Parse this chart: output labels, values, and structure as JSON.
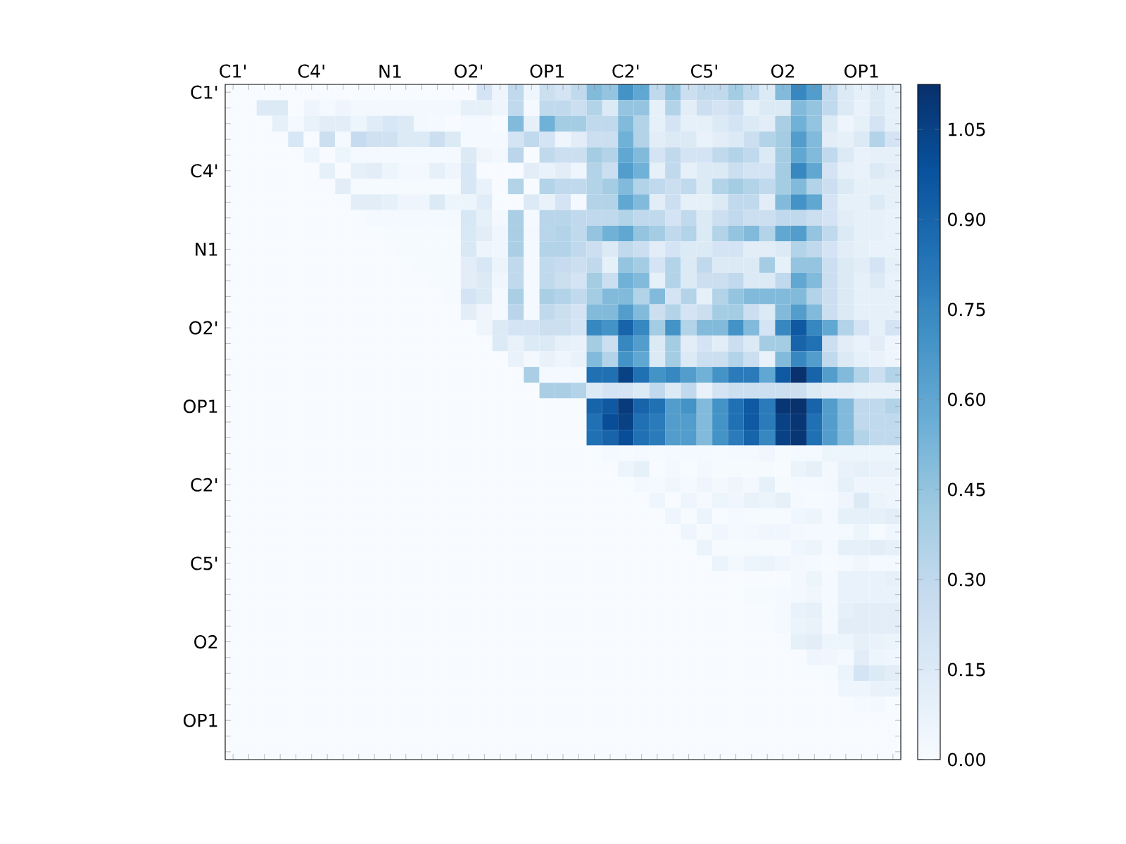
{
  "chart_data": {
    "type": "heatmap",
    "categories": [
      "C1'",
      null,
      null,
      null,
      null,
      "C4'",
      null,
      null,
      null,
      null,
      "N1",
      null,
      null,
      null,
      null,
      "O2'",
      null,
      null,
      null,
      null,
      "OP1",
      null,
      null,
      null,
      null,
      "C2'",
      null,
      null,
      null,
      null,
      "C5'",
      null,
      null,
      null,
      null,
      "O2",
      null,
      null,
      null,
      null,
      "OP1",
      null,
      null
    ],
    "y_categories": [
      "C1'",
      null,
      null,
      null,
      null,
      "C4'",
      null,
      null,
      null,
      null,
      "N1",
      null,
      null,
      null,
      null,
      "O2'",
      null,
      null,
      null,
      null,
      "OP1",
      null,
      null,
      null,
      null,
      "C2'",
      null,
      null,
      null,
      null,
      "C5'",
      null,
      null,
      null,
      null,
      "O2",
      null,
      null,
      null,
      null,
      "OP1",
      null,
      null
    ],
    "clim": [
      0,
      1.125
    ],
    "cticks": [
      {
        "value": 0,
        "label": "0.00"
      },
      {
        "value": 0.15,
        "label": "0.15"
      },
      {
        "value": 0.3,
        "label": "0.30"
      },
      {
        "value": 0.45,
        "label": "0.45"
      },
      {
        "value": 0.6,
        "label": "0.60"
      },
      {
        "value": 0.75,
        "label": "0.75"
      },
      {
        "value": 0.9,
        "label": "0.90"
      },
      {
        "value": 1.05,
        "label": "1.05"
      }
    ],
    "cells": [
      [
        0,
        0,
        0,
        0,
        0,
        0,
        0,
        0,
        0,
        0,
        0,
        0,
        0,
        0,
        0,
        0,
        0.2,
        0.05,
        0.3,
        0.05,
        0.25,
        0.2,
        0.3,
        0.5,
        0.45,
        0.7,
        0.6,
        0.3,
        0.45,
        0.25,
        0.3,
        0.3,
        0.4,
        0.3,
        0.15,
        0.5,
        0.75,
        0.65,
        0.3,
        0.15,
        0.1,
        0.15,
        0.1
      ],
      [
        0,
        0,
        0.15,
        0.15,
        0,
        0.05,
        0.02,
        0.05,
        0.03,
        0.03,
        0.03,
        0.03,
        0.03,
        0.03,
        0.03,
        0.1,
        0.1,
        0.05,
        0.3,
        0.02,
        0.3,
        0.3,
        0.25,
        0.35,
        0.15,
        0.45,
        0.45,
        0.1,
        0.35,
        0.12,
        0.25,
        0.2,
        0.25,
        0.1,
        0.15,
        0.15,
        0.5,
        0.45,
        0.3,
        0.15,
        0.08,
        0.15,
        0.1
      ],
      [
        0,
        0,
        0,
        0.1,
        0.02,
        0.08,
        0.12,
        0.12,
        0.06,
        0.13,
        0.18,
        0.15,
        0.03,
        0.02,
        0,
        0.02,
        0.02,
        0,
        0.5,
        0.1,
        0.55,
        0.4,
        0.4,
        0.3,
        0.3,
        0.5,
        0.35,
        0.1,
        0.2,
        0.1,
        0.1,
        0.15,
        0.2,
        0.15,
        0.12,
        0.38,
        0.55,
        0.45,
        0.15,
        0.05,
        0.1,
        0.2,
        0.1
      ],
      [
        0,
        0,
        0,
        0,
        0.18,
        0,
        0.25,
        0.02,
        0.28,
        0.22,
        0.22,
        0.15,
        0.15,
        0.25,
        0.15,
        0.02,
        0.02,
        0.02,
        0.2,
        0.3,
        0.2,
        0.05,
        0.12,
        0.25,
        0.25,
        0.55,
        0.35,
        0.12,
        0.15,
        0.15,
        0.08,
        0.12,
        0.15,
        0.25,
        0.35,
        0.4,
        0.65,
        0.5,
        0.12,
        0.1,
        0.15,
        0.35,
        0.2
      ],
      [
        0,
        0,
        0,
        0,
        0,
        0.06,
        0,
        0.06,
        0.02,
        0.02,
        0.02,
        0.02,
        0.02,
        0.02,
        0.02,
        0.15,
        0.05,
        0.03,
        0.32,
        0,
        0.3,
        0.25,
        0.25,
        0.4,
        0.35,
        0.6,
        0.5,
        0.2,
        0.3,
        0.2,
        0.2,
        0.3,
        0.35,
        0.3,
        0.15,
        0.4,
        0.6,
        0.5,
        0.3,
        0.15,
        0.08,
        0.1,
        0.1
      ],
      [
        0,
        0,
        0,
        0,
        0,
        0,
        0.1,
        0,
        0.1,
        0.12,
        0.06,
        0.03,
        0.03,
        0.1,
        0.05,
        0.18,
        0,
        0,
        0,
        0.12,
        0.08,
        0.12,
        0.05,
        0.35,
        0.25,
        0.65,
        0.55,
        0.1,
        0.3,
        0.1,
        0.15,
        0.15,
        0.25,
        0.2,
        0.2,
        0.4,
        0.75,
        0.6,
        0.2,
        0.1,
        0.08,
        0.15,
        0.12
      ],
      [
        0,
        0,
        0,
        0,
        0,
        0,
        0,
        0.12,
        0.01,
        0.01,
        0.01,
        0.01,
        0.01,
        0.01,
        0.01,
        0.18,
        0.08,
        0,
        0.35,
        0,
        0.35,
        0.3,
        0.3,
        0.35,
        0.4,
        0.5,
        0.35,
        0.3,
        0.25,
        0.3,
        0.15,
        0.35,
        0.4,
        0.35,
        0.3,
        0.4,
        0.5,
        0.35,
        0.25,
        0.15,
        0.1,
        0.1,
        0.1
      ],
      [
        0,
        0,
        0,
        0,
        0,
        0,
        0,
        0,
        0.12,
        0.12,
        0.1,
        0.05,
        0.05,
        0.15,
        0.06,
        0.06,
        0.13,
        0,
        0,
        0.15,
        0.08,
        0.2,
        0.02,
        0.35,
        0.35,
        0.6,
        0.5,
        0.12,
        0.25,
        0.1,
        0.1,
        0.15,
        0.3,
        0.3,
        0.12,
        0.5,
        0.7,
        0.6,
        0.2,
        0.1,
        0.1,
        0.15,
        0.1
      ],
      [
        0,
        0,
        0,
        0,
        0,
        0,
        0,
        0,
        0,
        0.02,
        0.02,
        0.02,
        0.02,
        0.02,
        0.02,
        0.18,
        0.1,
        0.03,
        0.38,
        0.02,
        0.33,
        0.33,
        0.3,
        0.3,
        0.3,
        0.35,
        0.3,
        0.3,
        0.2,
        0.3,
        0.15,
        0.25,
        0.3,
        0.25,
        0.25,
        0.3,
        0.3,
        0.25,
        0.2,
        0.12,
        0.1,
        0.1,
        0.08
      ],
      [
        0,
        0,
        0,
        0,
        0,
        0,
        0,
        0,
        0,
        0,
        0.01,
        0.01,
        0.01,
        0.01,
        0.01,
        0.17,
        0.12,
        0.04,
        0.38,
        0.03,
        0.33,
        0.35,
        0.3,
        0.45,
        0.55,
        0.6,
        0.45,
        0.4,
        0.3,
        0.35,
        0.15,
        0.35,
        0.45,
        0.5,
        0.35,
        0.6,
        0.65,
        0.45,
        0.3,
        0.15,
        0.1,
        0.1,
        0.08
      ],
      [
        0,
        0,
        0,
        0,
        0,
        0,
        0,
        0,
        0,
        0,
        0,
        0.01,
        0.01,
        0.01,
        0.01,
        0.17,
        0.06,
        0.04,
        0.38,
        0.02,
        0.35,
        0.35,
        0.3,
        0.25,
        0.15,
        0.3,
        0.25,
        0.12,
        0.2,
        0.15,
        0.15,
        0.2,
        0.2,
        0.12,
        0.12,
        0.15,
        0.35,
        0.3,
        0.2,
        0.12,
        0.1,
        0.08,
        0.08
      ],
      [
        0,
        0,
        0,
        0,
        0,
        0,
        0,
        0,
        0,
        0,
        0,
        0,
        0.01,
        0.01,
        0.01,
        0.12,
        0.18,
        0.07,
        0.3,
        0.02,
        0.3,
        0.28,
        0.25,
        0.3,
        0.1,
        0.45,
        0.4,
        0.2,
        0.35,
        0.15,
        0.3,
        0.15,
        0.15,
        0.15,
        0.4,
        0.1,
        0.45,
        0.45,
        0.25,
        0.15,
        0.12,
        0.2,
        0.1
      ],
      [
        0,
        0,
        0,
        0,
        0,
        0,
        0,
        0,
        0,
        0,
        0,
        0,
        0,
        0.01,
        0.01,
        0.12,
        0.15,
        0.04,
        0.3,
        0.02,
        0.3,
        0.25,
        0.2,
        0.4,
        0.25,
        0.55,
        0.5,
        0.1,
        0.35,
        0.15,
        0.25,
        0.25,
        0.3,
        0.15,
        0.15,
        0.3,
        0.6,
        0.5,
        0.25,
        0.15,
        0.1,
        0.15,
        0.08
      ],
      [
        0,
        0,
        0,
        0,
        0,
        0,
        0,
        0,
        0,
        0,
        0,
        0,
        0,
        0,
        0.01,
        0.2,
        0.15,
        0.02,
        0.38,
        0.02,
        0.38,
        0.35,
        0.3,
        0.4,
        0.5,
        0.5,
        0.35,
        0.5,
        0.2,
        0.35,
        0.1,
        0.35,
        0.45,
        0.5,
        0.5,
        0.5,
        0.5,
        0.35,
        0.25,
        0.15,
        0.1,
        0.1,
        0.1
      ],
      [
        0,
        0,
        0,
        0,
        0,
        0,
        0,
        0,
        0,
        0,
        0,
        0,
        0,
        0,
        0,
        0.12,
        0.05,
        0.02,
        0.33,
        0.02,
        0.3,
        0.25,
        0.2,
        0.5,
        0.5,
        0.65,
        0.5,
        0.25,
        0.35,
        0.2,
        0.25,
        0.4,
        0.4,
        0.25,
        0.15,
        0.5,
        0.65,
        0.5,
        0.25,
        0.15,
        0.1,
        0.1,
        0.1
      ],
      [
        0,
        0,
        0,
        0,
        0,
        0,
        0,
        0,
        0,
        0,
        0,
        0,
        0,
        0,
        0,
        0,
        0.05,
        0.15,
        0.2,
        0.2,
        0.25,
        0.25,
        0.2,
        0.75,
        0.7,
        0.9,
        0.75,
        0.4,
        0.7,
        0.35,
        0.5,
        0.5,
        0.7,
        0.5,
        0.2,
        0.75,
        0.95,
        0.75,
        0.6,
        0.35,
        0.2,
        0.1,
        0.2
      ],
      [
        0,
        0,
        0,
        0,
        0,
        0,
        0,
        0,
        0,
        0,
        0,
        0,
        0,
        0,
        0,
        0,
        0,
        0.15,
        0.08,
        0.15,
        0.15,
        0.1,
        0.08,
        0.4,
        0.25,
        0.75,
        0.65,
        0.15,
        0.4,
        0.12,
        0.2,
        0.12,
        0.25,
        0.15,
        0.4,
        0.4,
        0.9,
        0.85,
        0.25,
        0.12,
        0.08,
        0.12,
        0.05
      ],
      [
        0,
        0,
        0,
        0,
        0,
        0,
        0,
        0,
        0,
        0,
        0,
        0,
        0,
        0,
        0,
        0,
        0,
        0,
        0.08,
        0.03,
        0.08,
        0.05,
        0.08,
        0.5,
        0.35,
        0.7,
        0.6,
        0.15,
        0.4,
        0.15,
        0.25,
        0.25,
        0.35,
        0.25,
        0.08,
        0.5,
        0.75,
        0.65,
        0.3,
        0.15,
        0.1,
        0.08,
        0.05
      ],
      [
        0,
        0,
        0,
        0,
        0,
        0,
        0,
        0,
        0,
        0,
        0,
        0,
        0,
        0,
        0,
        0,
        0,
        0,
        0,
        0.38,
        0.02,
        0.02,
        0.02,
        0.85,
        0.85,
        1.05,
        0.85,
        0.7,
        0.75,
        0.65,
        0.55,
        0.7,
        0.8,
        0.8,
        0.6,
        0.95,
        1.12,
        0.9,
        0.65,
        0.5,
        0.35,
        0.25,
        0.35
      ],
      [
        0,
        0,
        0,
        0,
        0,
        0,
        0,
        0,
        0,
        0,
        0,
        0,
        0,
        0,
        0,
        0,
        0,
        0,
        0,
        0,
        0.38,
        0.38,
        0.35,
        0.15,
        0.2,
        0.2,
        0.15,
        0.3,
        0.15,
        0.3,
        0.08,
        0.2,
        0.25,
        0.25,
        0.25,
        0.25,
        0.25,
        0.15,
        0.12,
        0.12,
        0.1,
        0.1,
        0.1
      ],
      [
        0,
        0,
        0,
        0,
        0,
        0,
        0,
        0,
        0,
        0,
        0,
        0,
        0,
        0,
        0,
        0,
        0,
        0,
        0,
        0,
        0,
        0,
        0,
        0.9,
        0.95,
        1.08,
        0.9,
        0.85,
        0.65,
        0.7,
        0.5,
        0.7,
        0.85,
        0.95,
        0.8,
        1.1,
        1.12,
        0.9,
        0.65,
        0.5,
        0.3,
        0.3,
        0.35
      ],
      [
        0,
        0,
        0,
        0,
        0,
        0,
        0,
        0,
        0,
        0,
        0,
        0,
        0,
        0,
        0,
        0,
        0,
        0,
        0,
        0,
        0,
        0,
        0,
        0.85,
        1.0,
        1.05,
        0.85,
        0.8,
        0.65,
        0.65,
        0.5,
        0.7,
        0.85,
        0.95,
        0.8,
        1.05,
        1.1,
        0.85,
        0.65,
        0.5,
        0.3,
        0.3,
        0.3
      ],
      [
        0,
        0,
        0,
        0,
        0,
        0,
        0,
        0,
        0,
        0,
        0,
        0,
        0,
        0,
        0,
        0,
        0,
        0,
        0,
        0,
        0,
        0,
        0,
        0.85,
        0.9,
        1.0,
        0.85,
        0.8,
        0.65,
        0.65,
        0.5,
        0.7,
        0.8,
        0.9,
        0.75,
        1.05,
        1.1,
        0.85,
        0.65,
        0.5,
        0.35,
        0.3,
        0.3
      ],
      [
        0,
        0,
        0,
        0,
        0,
        0,
        0,
        0,
        0,
        0,
        0,
        0,
        0,
        0,
        0,
        0,
        0,
        0,
        0,
        0,
        0,
        0,
        0,
        0,
        0.02,
        0.01,
        0.02,
        0.01,
        0.02,
        0.02,
        0.02,
        0.01,
        0.02,
        0.02,
        0.04,
        0.01,
        0.02,
        0.02,
        0.06,
        0.06,
        0.06,
        0.06,
        0.06
      ],
      [
        0,
        0,
        0,
        0,
        0,
        0,
        0,
        0,
        0,
        0,
        0,
        0,
        0,
        0,
        0,
        0,
        0,
        0,
        0,
        0,
        0,
        0,
        0,
        0,
        0,
        0.06,
        0.1,
        0,
        0.03,
        0,
        0.03,
        0.01,
        0.01,
        0.01,
        0.01,
        0,
        0.07,
        0.1,
        0.03,
        0.08,
        0.1,
        0.08,
        0.08
      ],
      [
        0,
        0,
        0,
        0,
        0,
        0,
        0,
        0,
        0,
        0,
        0,
        0,
        0,
        0,
        0,
        0,
        0,
        0,
        0,
        0,
        0,
        0,
        0,
        0,
        0,
        0,
        0.03,
        0.02,
        0.04,
        0.02,
        0.05,
        0.03,
        0.05,
        0.03,
        0.1,
        0.01,
        0.02,
        0.02,
        0.03,
        0.1,
        0.05,
        0.05,
        0.05
      ],
      [
        0,
        0,
        0,
        0,
        0,
        0,
        0,
        0,
        0,
        0,
        0,
        0,
        0,
        0,
        0,
        0,
        0,
        0,
        0,
        0,
        0,
        0,
        0,
        0,
        0,
        0,
        0,
        0.05,
        0,
        0.05,
        0.02,
        0.06,
        0.04,
        0.08,
        0.07,
        0.1,
        0.02,
        0.01,
        0.02,
        0.05,
        0.15,
        0.07,
        0.05
      ],
      [
        0,
        0,
        0,
        0,
        0,
        0,
        0,
        0,
        0,
        0,
        0,
        0,
        0,
        0,
        0,
        0,
        0,
        0,
        0,
        0,
        0,
        0,
        0,
        0,
        0,
        0,
        0,
        0,
        0.05,
        0.01,
        0.07,
        0,
        0.02,
        0.01,
        0.01,
        0.01,
        0.04,
        0.06,
        0.02,
        0.1,
        0.1,
        0.1,
        0.12
      ],
      [
        0,
        0,
        0,
        0,
        0,
        0,
        0,
        0,
        0,
        0,
        0,
        0,
        0,
        0,
        0,
        0,
        0,
        0,
        0,
        0,
        0,
        0,
        0,
        0,
        0,
        0,
        0,
        0,
        0,
        0.05,
        0.01,
        0.04,
        0.02,
        0.03,
        0.04,
        0.04,
        0.03,
        0.02,
        0.02,
        0.02,
        0.06,
        0.01,
        0.04
      ],
      [
        0,
        0,
        0,
        0,
        0,
        0,
        0,
        0,
        0,
        0,
        0,
        0,
        0,
        0,
        0,
        0,
        0,
        0,
        0,
        0,
        0,
        0,
        0,
        0,
        0,
        0,
        0,
        0,
        0,
        0,
        0.07,
        0.01,
        0.01,
        0.01,
        0.01,
        0.01,
        0.04,
        0.06,
        0.02,
        0.1,
        0.1,
        0.12,
        0.1
      ],
      [
        0,
        0,
        0,
        0,
        0,
        0,
        0,
        0,
        0,
        0,
        0,
        0,
        0,
        0,
        0,
        0,
        0,
        0,
        0,
        0,
        0,
        0,
        0,
        0,
        0,
        0,
        0,
        0,
        0,
        0,
        0,
        0.07,
        0.03,
        0.06,
        0.07,
        0.04,
        0.03,
        0.02,
        0.01,
        0.02,
        0.04,
        0.02,
        0.02
      ],
      [
        0,
        0,
        0,
        0,
        0,
        0,
        0,
        0,
        0,
        0,
        0,
        0,
        0,
        0,
        0,
        0,
        0,
        0,
        0,
        0,
        0,
        0,
        0,
        0,
        0,
        0,
        0,
        0,
        0,
        0,
        0,
        0,
        0,
        0,
        0,
        0,
        0.03,
        0.06,
        0.02,
        0.08,
        0.08,
        0.08,
        0.1
      ],
      [
        0,
        0,
        0,
        0,
        0,
        0,
        0,
        0,
        0,
        0,
        0,
        0,
        0,
        0,
        0,
        0,
        0,
        0,
        0,
        0,
        0,
        0,
        0,
        0,
        0,
        0,
        0,
        0,
        0,
        0,
        0,
        0,
        0,
        0.01,
        0.01,
        0.02,
        0.03,
        0.04,
        0.02,
        0.08,
        0.08,
        0.08,
        0.08
      ],
      [
        0,
        0,
        0,
        0,
        0,
        0,
        0,
        0,
        0,
        0,
        0,
        0,
        0,
        0,
        0,
        0,
        0,
        0,
        0,
        0,
        0,
        0,
        0,
        0,
        0,
        0,
        0,
        0,
        0,
        0,
        0,
        0,
        0,
        0,
        0,
        0.02,
        0.08,
        0.1,
        0.02,
        0.1,
        0.12,
        0.12,
        0.12
      ],
      [
        0,
        0,
        0,
        0,
        0,
        0,
        0,
        0,
        0,
        0,
        0,
        0,
        0,
        0,
        0,
        0,
        0,
        0,
        0,
        0,
        0,
        0,
        0,
        0,
        0,
        0,
        0,
        0,
        0,
        0,
        0,
        0,
        0,
        0,
        0,
        0.02,
        0.07,
        0.08,
        0.02,
        0.12,
        0.12,
        0.12,
        0.12
      ],
      [
        0,
        0,
        0,
        0,
        0,
        0,
        0,
        0,
        0,
        0,
        0,
        0,
        0,
        0,
        0,
        0,
        0,
        0,
        0,
        0,
        0,
        0,
        0,
        0,
        0,
        0,
        0,
        0,
        0,
        0,
        0,
        0,
        0,
        0,
        0,
        0,
        0.1,
        0.12,
        0.06,
        0.06,
        0.1,
        0.08,
        0.07
      ],
      [
        0,
        0,
        0,
        0,
        0,
        0,
        0,
        0,
        0,
        0,
        0,
        0,
        0,
        0,
        0,
        0,
        0,
        0,
        0,
        0,
        0,
        0,
        0,
        0,
        0,
        0,
        0,
        0,
        0,
        0,
        0,
        0,
        0,
        0,
        0,
        0,
        0,
        0.05,
        0.04,
        0.02,
        0.12,
        0.06,
        0.04
      ],
      [
        0,
        0,
        0,
        0,
        0,
        0,
        0,
        0,
        0,
        0,
        0,
        0,
        0,
        0,
        0,
        0,
        0,
        0,
        0,
        0,
        0,
        0,
        0,
        0,
        0,
        0,
        0,
        0,
        0,
        0,
        0,
        0,
        0,
        0,
        0,
        0,
        0,
        0,
        0.01,
        0.07,
        0.2,
        0.15,
        0.12
      ],
      [
        0,
        0,
        0,
        0,
        0,
        0,
        0,
        0,
        0,
        0,
        0,
        0,
        0,
        0,
        0,
        0,
        0,
        0,
        0,
        0,
        0,
        0,
        0,
        0,
        0,
        0,
        0,
        0,
        0,
        0,
        0,
        0,
        0,
        0,
        0,
        0,
        0,
        0,
        0,
        0.05,
        0.05,
        0.08,
        0.08
      ],
      [
        0,
        0,
        0,
        0,
        0,
        0,
        0,
        0,
        0,
        0,
        0,
        0,
        0,
        0,
        0,
        0,
        0,
        0,
        0,
        0,
        0,
        0,
        0,
        0,
        0,
        0,
        0,
        0,
        0,
        0,
        0,
        0,
        0,
        0,
        0,
        0,
        0,
        0,
        0,
        0,
        0.02,
        0.03,
        0
      ],
      [
        0,
        0,
        0,
        0,
        0,
        0,
        0,
        0,
        0,
        0,
        0,
        0,
        0,
        0,
        0,
        0,
        0,
        0,
        0,
        0,
        0,
        0,
        0,
        0,
        0,
        0,
        0,
        0,
        0,
        0,
        0,
        0,
        0,
        0,
        0,
        0,
        0,
        0,
        0,
        0,
        0,
        0,
        0
      ],
      [
        0,
        0,
        0,
        0,
        0,
        0,
        0,
        0,
        0,
        0,
        0,
        0,
        0,
        0,
        0,
        0,
        0,
        0,
        0,
        0,
        0,
        0,
        0,
        0,
        0,
        0,
        0,
        0,
        0,
        0,
        0,
        0,
        0,
        0,
        0,
        0,
        0,
        0,
        0,
        0,
        0,
        0,
        0
      ],
      [
        0,
        0,
        0,
        0,
        0,
        0,
        0,
        0,
        0,
        0,
        0,
        0,
        0,
        0,
        0,
        0,
        0,
        0,
        0,
        0,
        0,
        0,
        0,
        0,
        0,
        0,
        0,
        0,
        0,
        0,
        0,
        0,
        0,
        0,
        0,
        0,
        0,
        0,
        0,
        0,
        0,
        0,
        0
      ]
    ]
  }
}
